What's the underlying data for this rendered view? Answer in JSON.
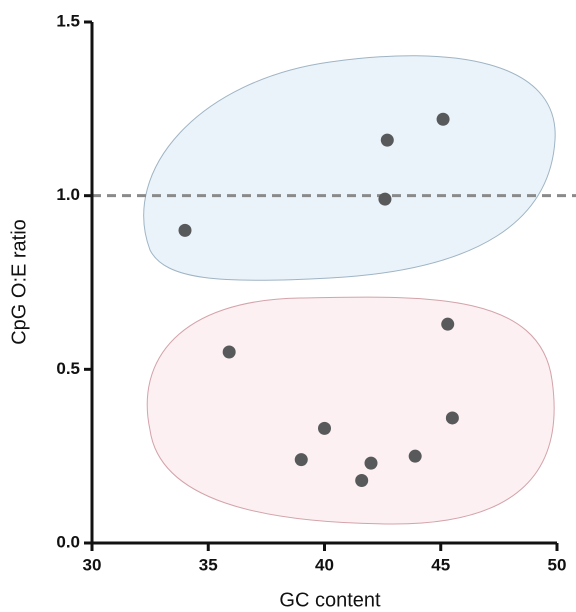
{
  "chart_data": {
    "type": "scatter",
    "x_label": "GC content",
    "y_label": "CpG O:E ratio",
    "x": [
      34.0,
      42.6,
      42.7,
      45.1,
      45.3,
      35.9,
      45.5,
      40.0,
      39.0,
      42.0,
      43.9,
      41.6
    ],
    "values": [
      0.9,
      0.99,
      1.16,
      1.22,
      0.63,
      0.55,
      0.36,
      0.33,
      0.24,
      0.23,
      0.25,
      0.18
    ],
    "color": "#58595b",
    "xlim": [
      30,
      50
    ],
    "ylim": [
      0,
      1.5
    ],
    "xticks": [
      30,
      35,
      40,
      45,
      50
    ],
    "yticks": [
      {
        "value": 0,
        "label": "0.0"
      },
      {
        "value": 0.5,
        "label": "0.5"
      },
      {
        "value": 1.0,
        "label": "1.0"
      },
      {
        "value": 1.5,
        "label": "1.5"
      }
    ],
    "reference_line": 1.0
  }
}
